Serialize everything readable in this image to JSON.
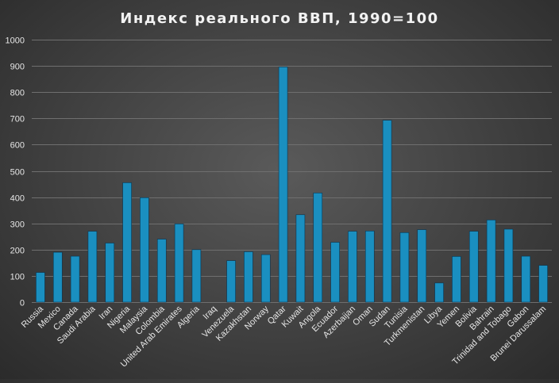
{
  "chart_data": {
    "type": "bar",
    "title": "Индекс  реального  ВВП, 1990=100",
    "xlabel": "",
    "ylabel": "",
    "ylim": [
      0,
      1000
    ],
    "yticks": [
      0,
      100,
      200,
      300,
      400,
      500,
      600,
      700,
      800,
      900,
      1000
    ],
    "grid": true,
    "legend": "none",
    "bar_color": "#1a8fc0",
    "categories": [
      "Russia",
      "Mexico",
      "Canada",
      "Saudi Arabia",
      "Iran",
      "Nigeria",
      "Malaysia",
      "Colombia",
      "United Arab Emirates",
      "Algeria",
      "Iraq",
      "Venezuela",
      "Kazakhstan",
      "Norway",
      "Qatar",
      "Kuwait",
      "Angola",
      "Ecuador",
      "Azerbaijan",
      "Oman",
      "Sudan",
      "Tunisia",
      "Turkmenistan",
      "Libya",
      "Yemen",
      "Bolivia",
      "Bahrain",
      "Trinidad and Tobago",
      "Gabon",
      "Brunei Darussalam"
    ],
    "values": [
      113,
      190,
      175,
      270,
      225,
      455,
      398,
      240,
      298,
      200,
      null,
      158,
      192,
      181,
      896,
      333,
      416,
      228,
      270,
      271,
      693,
      265,
      276,
      73,
      174,
      270,
      313,
      278,
      175,
      140
    ]
  }
}
